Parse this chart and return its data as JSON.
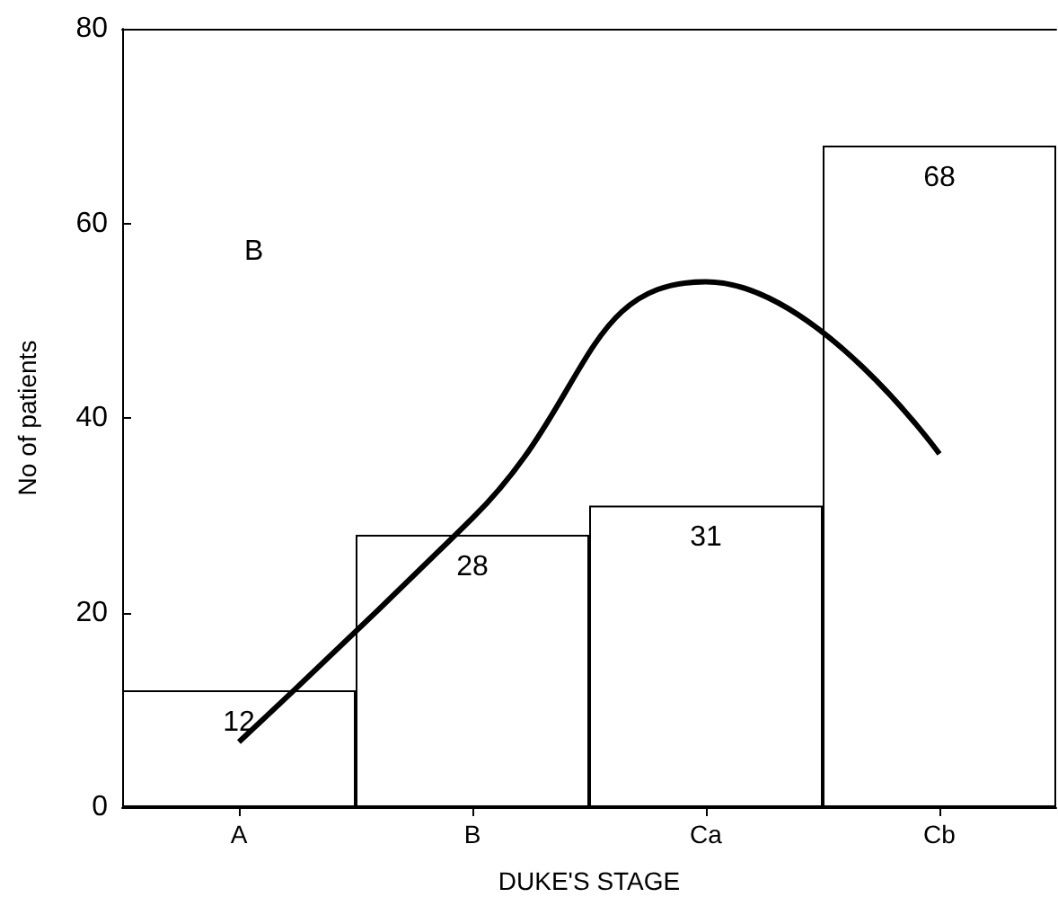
{
  "chart_data": {
    "type": "bar",
    "xlabel": "DUKE'S STAGE",
    "ylabel": "No of patients",
    "categories": [
      "A",
      "B",
      "Ca",
      "Cb"
    ],
    "series": [
      {
        "color": "#ffffff",
        "values": [
          12,
          28,
          31,
          68
        ],
        "value_labels": [
          "12",
          "28",
          "31",
          "68"
        ]
      },
      {
        "type": "line",
        "color": "#000000",
        "values": [
          6.7,
          29.7,
          54,
          36.3
        ]
      }
    ],
    "ylim": [
      0,
      80
    ],
    "yticks": [
      0,
      20,
      40,
      60,
      80
    ],
    "marker": "none",
    "annotations": [
      "B"
    ]
  }
}
